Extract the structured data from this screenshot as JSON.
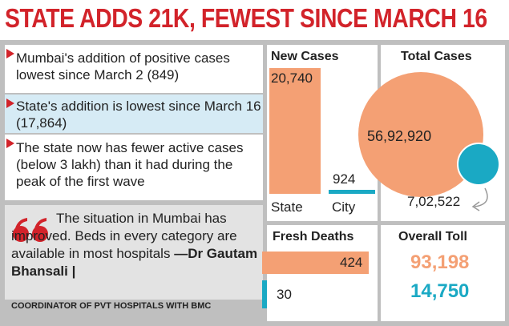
{
  "header": {
    "title": "STATE ADDS 21K, FEWEST SINCE MARCH 16"
  },
  "bullets": [
    "Mumbai's addition of positive cases lowest since March 2 (849)",
    "State's addition is lowest since March 16 (17,864)",
    "The state now has fewer active cases (below 3 lakh) than it had during the peak of the first wave"
  ],
  "quote": {
    "text": "The situation in Mumbai has improved. Beds in every category are available in most hospitals",
    "author": "—Dr Gautam Bhansali |",
    "role": "COORDINATOR OF PVT HOSPITALS WITH BMC"
  },
  "new_cases": {
    "title": "New Cases",
    "state": {
      "label": "State",
      "value": "20,740"
    },
    "city": {
      "label": "City",
      "value": "924"
    }
  },
  "total_cases": {
    "title": "Total Cases",
    "state": "56,92,920",
    "city": "7,02,522"
  },
  "fresh_deaths": {
    "title": "Fresh Deaths",
    "state": "424",
    "city": "30"
  },
  "overall_toll": {
    "title": "Overall Toll",
    "state": "93,198",
    "city": "14,750"
  }
}
